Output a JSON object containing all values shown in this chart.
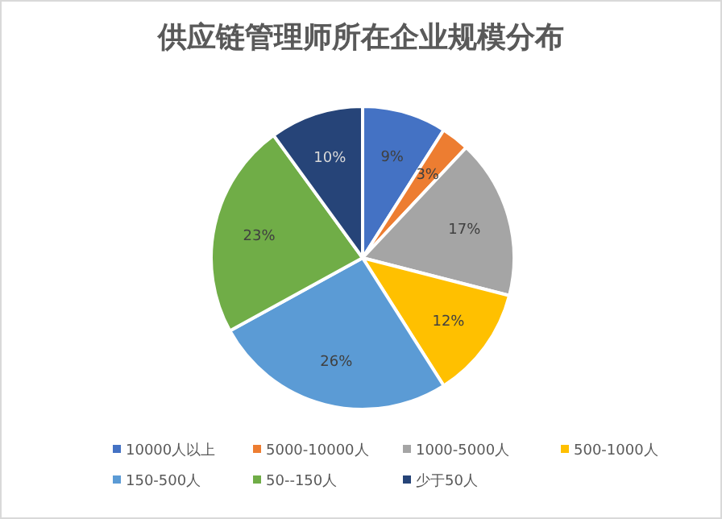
{
  "chart_data": {
    "type": "pie",
    "title": "供应链管理师所在企业规模分布",
    "categories": [
      "10000人以上",
      "5000-10000人",
      "1000-5000人",
      "500-1000人",
      "150-500人",
      "50--150人",
      "少于50人"
    ],
    "values": [
      9,
      3,
      17,
      12,
      26,
      23,
      10
    ],
    "colors": [
      "#4472c4",
      "#ed7d31",
      "#a5a5a5",
      "#ffc000",
      "#5b9bd5",
      "#70ad47",
      "#264478"
    ],
    "value_labels": [
      "9%",
      "3%",
      "17%",
      "12%",
      "26%",
      "23%",
      "10%"
    ],
    "legend": "bottom"
  }
}
